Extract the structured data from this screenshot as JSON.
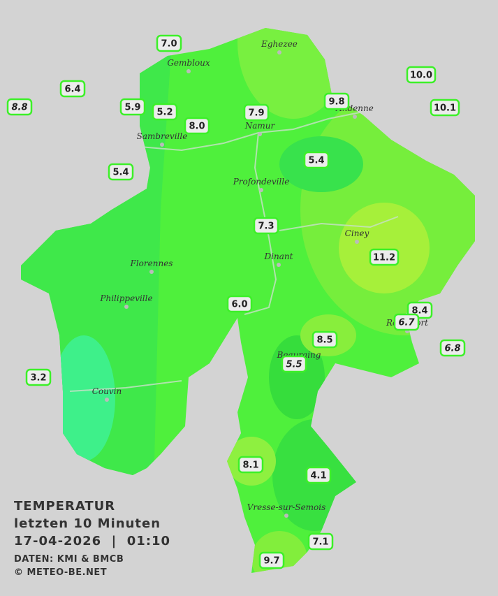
{
  "title": {
    "line1": "TEMPERATUR",
    "line2": "letzten 10 Minuten",
    "line3": "17-04-2026  |  01:10",
    "credits": "DATEN: KMI & BMCB",
    "copyright": "© METEO-BE.NET"
  },
  "cities": [
    "Eghezee",
    "Gembloux",
    "Andenne",
    "Namur",
    "Sambreville",
    "Profondeville",
    "Ciney",
    "Dinant",
    "Florennes",
    "Philippeville",
    "Beauraing",
    "Rochefort",
    "Couvin",
    "Vresse-sur-Semois"
  ],
  "stations": [
    "7.0",
    "6.4",
    "8.8",
    "5.9",
    "5.2",
    "8.0",
    "7.9",
    "9.8",
    "10.0",
    "10.1",
    "5.4",
    "5.4",
    "7.3",
    "11.2",
    "6.0",
    "8.4",
    "6.7",
    "6.8",
    "8.5",
    "5.5",
    "3.2",
    "8.1",
    "4.1",
    "7.1",
    "9.7"
  ]
}
